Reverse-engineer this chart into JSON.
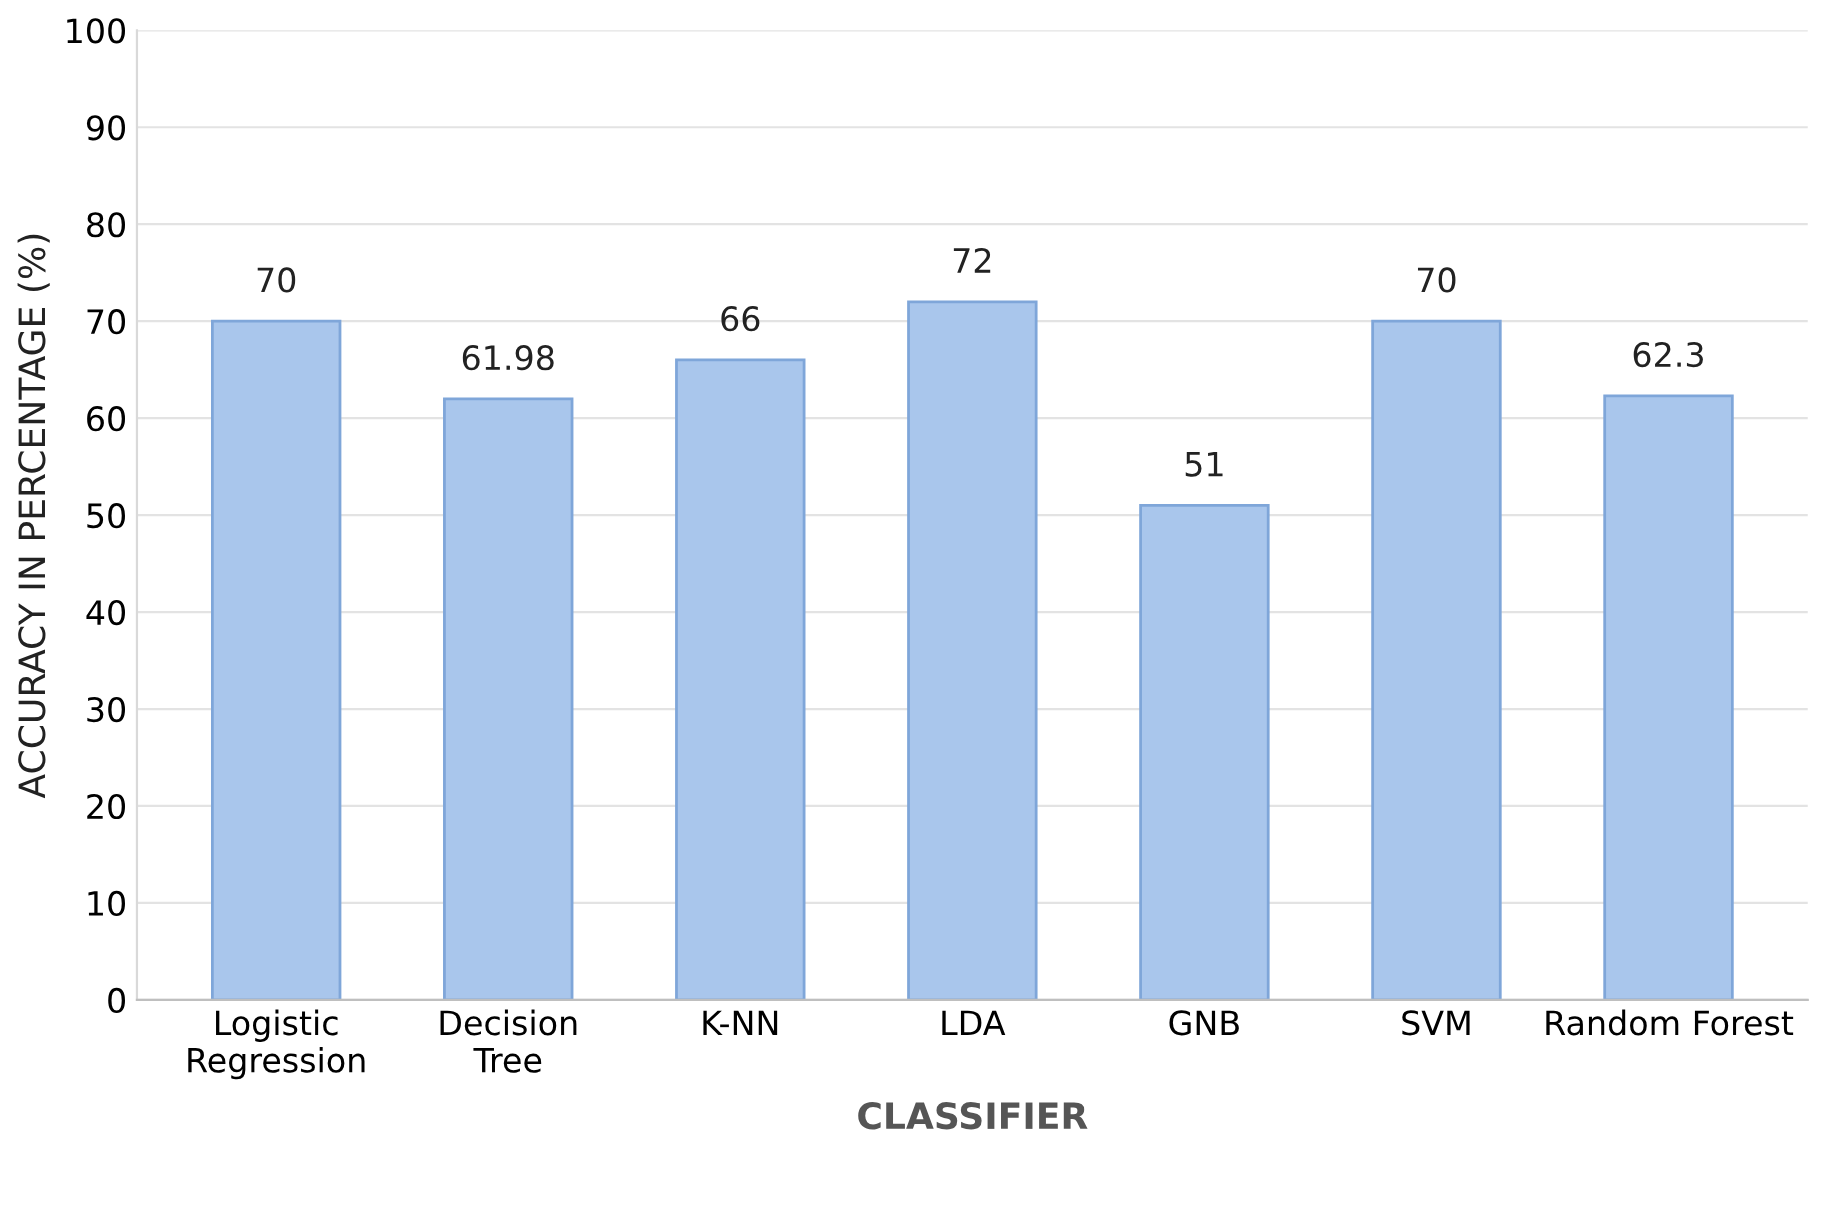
{
  "chart_data": {
    "type": "bar",
    "xlabel": "CLASSIFIER",
    "ylabel": "ACCURACY IN PERCENTAGE (%)",
    "categories": [
      "Logistic\nRegression",
      "Decision\nTree",
      "K-NN",
      "LDA",
      "GNB",
      "SVM",
      "Random Forest"
    ],
    "values": [
      70,
      61.98,
      66,
      72,
      51,
      70,
      62.3
    ],
    "color": "#a9c6ec",
    "ylim": [
      0,
      100
    ],
    "yticks": [
      0,
      10,
      20,
      30,
      40,
      50,
      60,
      70,
      80,
      90,
      100
    ],
    "grid": "y",
    "data_labels": true
  }
}
